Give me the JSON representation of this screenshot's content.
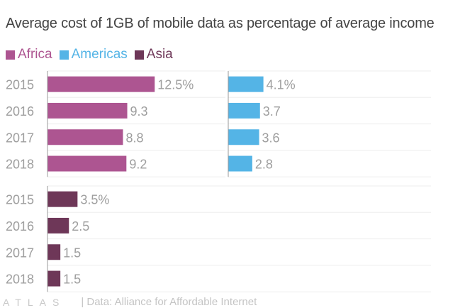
{
  "chart_data": {
    "type": "bar",
    "orientation": "horizontal",
    "title": "Average cost of 1GB of mobile data as percentage of average income",
    "categories": [
      "2015",
      "2016",
      "2017",
      "2018"
    ],
    "xlim": [
      0,
      16
    ],
    "grid": true,
    "legend_position": "top-left",
    "series": [
      {
        "name": "Africa",
        "color": "#ad5591",
        "values": [
          12.5,
          9.3,
          8.8,
          9.2
        ],
        "labels": [
          "12.5%",
          "9.3",
          "8.8",
          "9.2"
        ]
      },
      {
        "name": "Americas",
        "color": "#54b4e6",
        "values": [
          4.1,
          3.7,
          3.6,
          2.8
        ],
        "labels": [
          "4.1%",
          "3.7",
          "3.6",
          "2.8"
        ]
      },
      {
        "name": "Asia",
        "color": "#6e3758",
        "values": [
          3.5,
          2.5,
          1.5,
          1.5
        ],
        "labels": [
          "3.5%",
          "2.5",
          "1.5",
          "1.5"
        ]
      }
    ]
  },
  "footer": {
    "logo": "ATLAS",
    "source": "| Data: Alliance for Affordable Internet"
  }
}
